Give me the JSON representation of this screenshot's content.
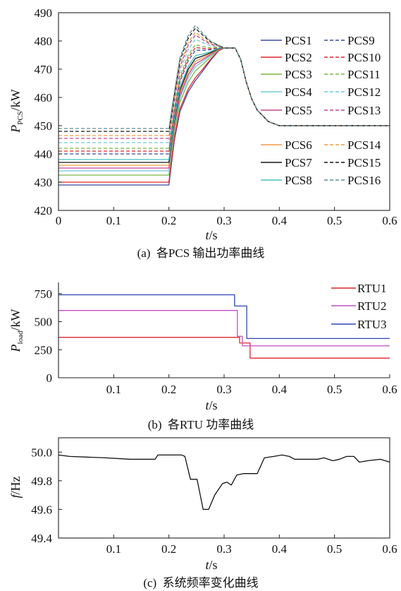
{
  "chart_data": [
    {
      "type": "line",
      "caption": "(a)  各PCS 输出功率曲线",
      "xlabel": {
        "symbol": "t",
        "unit": "/s"
      },
      "ylabel": {
        "symbol": "P",
        "subscript": "PCS",
        "unit": "/kW"
      },
      "xlim": [
        0,
        0.6
      ],
      "ylim": [
        420,
        490
      ],
      "xticks": [
        0,
        0.1,
        0.2,
        0.3,
        0.4,
        0.5,
        0.6
      ],
      "xtick_labels": [
        "0",
        "0.1",
        "0.2",
        "0.3",
        "0.4",
        "0.5",
        "0.6"
      ],
      "yticks": [
        420,
        430,
        440,
        450,
        460,
        470,
        480,
        490
      ],
      "ytick_labels": [
        "420",
        "430",
        "440",
        "450",
        "460",
        "470",
        "480",
        "490"
      ],
      "grid": false,
      "legend": "right",
      "x": [
        0,
        0.2,
        0.21,
        0.22,
        0.235,
        0.248,
        0.26,
        0.275,
        0.29,
        0.3,
        0.32,
        0.33,
        0.34,
        0.35,
        0.36,
        0.38,
        0.4,
        0.6
      ],
      "series": [
        {
          "name": "PCS1",
          "color": "#3b4ba8",
          "style": "solid",
          "values": [
            429,
            429,
            445,
            455,
            462,
            466,
            469,
            473,
            476.5,
            477.5,
            477.5,
            473.5,
            465.5,
            459.5,
            455.5,
            451.5,
            450,
            450
          ]
        },
        {
          "name": "PCS2",
          "color": "#e0262b",
          "style": "solid",
          "values": [
            430,
            430,
            445.9,
            456,
            463,
            467,
            469.7,
            473.4,
            476.6,
            477.5,
            477.5,
            473.5,
            465.5,
            459.5,
            455.5,
            451.5,
            450,
            450
          ]
        },
        {
          "name": "PCS3",
          "color": "#7cb843",
          "style": "solid",
          "values": [
            432.5,
            432.5,
            448,
            458.3,
            465.5,
            469.4,
            471.5,
            474.2,
            476.9,
            477.5,
            477.5,
            473.5,
            465.5,
            459.5,
            455.5,
            451.5,
            450,
            450
          ]
        },
        {
          "name": "PCS4",
          "color": "#6fcadf",
          "style": "solid",
          "values": [
            434,
            434,
            449.3,
            459.8,
            467,
            470.9,
            472.5,
            474.8,
            477,
            477.5,
            477.5,
            473.5,
            465.5,
            459.5,
            455.5,
            451.5,
            450,
            450
          ]
        },
        {
          "name": "PCS5",
          "color": "#c2449a",
          "style": "solid",
          "values": [
            435,
            435,
            450.1,
            460.7,
            468,
            471.9,
            473.2,
            475.1,
            477.1,
            477.5,
            477.5,
            473.5,
            465.5,
            459.5,
            455.5,
            451.5,
            450,
            450
          ]
        },
        {
          "name": "PCS6",
          "color": "#f39a45",
          "style": "solid",
          "values": [
            436,
            436,
            451,
            461.7,
            469,
            472.8,
            473.9,
            475.5,
            477.2,
            477.5,
            477.5,
            473.5,
            465.5,
            459.5,
            455.5,
            451.5,
            450,
            450
          ]
        },
        {
          "name": "PCS7",
          "color": "#161616",
          "style": "solid",
          "values": [
            437,
            437,
            451.8,
            462.6,
            470,
            473.8,
            474.6,
            475.8,
            477.3,
            477.5,
            477.5,
            473.5,
            465.5,
            459.5,
            455.5,
            451.5,
            450,
            450
          ]
        },
        {
          "name": "PCS8",
          "color": "#43c3bf",
          "style": "solid",
          "values": [
            438,
            438,
            452.7,
            463.6,
            471,
            474.8,
            475.3,
            476.2,
            477.4,
            477.5,
            477.5,
            473.5,
            465.5,
            459.5,
            455.5,
            451.5,
            450,
            450
          ]
        },
        {
          "name": "PCS9",
          "color": "#3b4ba8",
          "style": "dashed",
          "values": [
            440,
            440,
            454.4,
            465.5,
            473,
            476.7,
            476.7,
            476.9,
            477.6,
            477.5,
            477.5,
            473.5,
            465.5,
            459.5,
            455.5,
            451.5,
            450,
            450
          ]
        },
        {
          "name": "PCS10",
          "color": "#e0262b",
          "style": "dashed",
          "values": [
            441,
            441,
            455.2,
            466.4,
            474,
            477.7,
            477.4,
            477.2,
            477.7,
            477.5,
            477.5,
            473.5,
            465.5,
            459.5,
            455.5,
            451.5,
            450,
            450
          ]
        },
        {
          "name": "PCS11",
          "color": "#7cb843",
          "style": "dashed",
          "values": [
            442,
            442,
            456.1,
            467.4,
            475,
            478.7,
            478.1,
            477.6,
            477.8,
            477.5,
            477.5,
            473.5,
            465.5,
            459.5,
            455.5,
            451.5,
            450,
            450
          ]
        },
        {
          "name": "PCS12",
          "color": "#6fcadf",
          "style": "dashed",
          "values": [
            444,
            444,
            457.8,
            469.3,
            477,
            480.6,
            479.5,
            478.3,
            478,
            477.5,
            477.5,
            473.5,
            465.5,
            459.5,
            455.5,
            451.5,
            450,
            450
          ]
        },
        {
          "name": "PCS13",
          "color": "#c2449a",
          "style": "dashed",
          "values": [
            445.5,
            445.5,
            459,
            470.7,
            478.5,
            482.1,
            480.6,
            478.8,
            478.2,
            477.5,
            477.5,
            473.5,
            465.5,
            459.5,
            455.5,
            451.5,
            450,
            450
          ]
        },
        {
          "name": "PCS14",
          "color": "#f39a45",
          "style": "dashed",
          "values": [
            446.5,
            446.5,
            459.9,
            471.6,
            479.5,
            483.1,
            481.3,
            479.1,
            478.3,
            477.5,
            477.5,
            473.5,
            465.5,
            459.5,
            455.5,
            451.5,
            450,
            450
          ]
        },
        {
          "name": "PCS15",
          "color": "#161616",
          "style": "dashed",
          "values": [
            448,
            448,
            461.2,
            473.1,
            481,
            484.5,
            482.3,
            479.7,
            478.4,
            477.5,
            477.5,
            473.5,
            465.5,
            459.5,
            455.5,
            451.5,
            450,
            450
          ]
        },
        {
          "name": "PCS16",
          "color": "#5c8f8f",
          "style": "dashed",
          "values": [
            449,
            449,
            462,
            474,
            482,
            485.5,
            483,
            480,
            478.5,
            477.5,
            477.5,
            473.5,
            465.5,
            459.5,
            455.5,
            451.5,
            450,
            450
          ]
        }
      ]
    },
    {
      "type": "line",
      "caption": "(b)  各RTU 功率曲线",
      "xlabel": {
        "symbol": "t",
        "unit": "/s"
      },
      "ylabel": {
        "symbol": "P",
        "subscript": "load",
        "unit": "/kW"
      },
      "xlim": [
        0,
        0.6
      ],
      "ylim": [
        0,
        850
      ],
      "xticks": [
        0.1,
        0.2,
        0.3,
        0.4,
        0.5,
        0.6
      ],
      "xtick_labels": [
        "0.1",
        "0.2",
        "0.3",
        "0.4",
        "0.5",
        "0.6"
      ],
      "yticks": [
        0,
        250,
        500,
        750
      ],
      "ytick_labels": [
        "0",
        "250",
        "500",
        "750"
      ],
      "grid": false,
      "legend": "top-right",
      "series": [
        {
          "name": "RTU1",
          "color": "#e0262b",
          "style": "solid",
          "x": [
            0,
            0.328,
            0.328,
            0.347,
            0.347,
            0.6
          ],
          "values": [
            360,
            360,
            310,
            310,
            175,
            175
          ]
        },
        {
          "name": "RTU2",
          "color": "#c44fc6",
          "style": "solid",
          "x": [
            0,
            0.324,
            0.324,
            0.333,
            0.333,
            0.6
          ],
          "values": [
            600,
            600,
            370,
            370,
            285,
            285
          ]
        },
        {
          "name": "RTU3",
          "color": "#2f46b3",
          "style": "solid",
          "x": [
            0,
            0.319,
            0.319,
            0.341,
            0.341,
            0.6
          ],
          "values": [
            740,
            740,
            640,
            640,
            350,
            350
          ]
        }
      ]
    },
    {
      "type": "line",
      "caption": "(c)  系统频率变化曲线",
      "xlabel": {
        "symbol": "t",
        "unit": "/s"
      },
      "ylabel": {
        "symbol": "f",
        "unit": "/Hz"
      },
      "xlim": [
        0,
        0.6
      ],
      "ylim": [
        49.4,
        50.1
      ],
      "xticks": [
        0.1,
        0.2,
        0.3,
        0.4,
        0.5,
        0.6
      ],
      "xtick_labels": [
        "0.1",
        "0.2",
        "0.3",
        "0.4",
        "0.5",
        "0.6"
      ],
      "yticks": [
        49.4,
        49.6,
        49.8,
        50.0
      ],
      "ytick_labels": [
        "49.4",
        "49.6",
        "49.8",
        "50.0"
      ],
      "grid": false,
      "series": [
        {
          "color": "#111111",
          "style": "solid",
          "x": [
            0,
            0.02,
            0.085,
            0.13,
            0.175,
            0.18,
            0.223,
            0.229,
            0.239,
            0.251,
            0.262,
            0.272,
            0.283,
            0.297,
            0.305,
            0.313,
            0.323,
            0.335,
            0.36,
            0.373,
            0.39,
            0.405,
            0.418,
            0.428,
            0.469,
            0.481,
            0.497,
            0.509,
            0.522,
            0.535,
            0.545,
            0.56,
            0.583,
            0.6
          ],
          "values": [
            49.98,
            49.97,
            49.96,
            49.95,
            49.95,
            49.98,
            49.98,
            49.97,
            49.81,
            49.81,
            49.6,
            49.6,
            49.7,
            49.78,
            49.79,
            49.77,
            49.84,
            49.85,
            49.85,
            49.96,
            49.97,
            49.98,
            49.97,
            49.95,
            49.95,
            49.96,
            49.94,
            49.95,
            49.97,
            49.97,
            49.93,
            49.94,
            49.95,
            49.93
          ]
        }
      ]
    }
  ]
}
